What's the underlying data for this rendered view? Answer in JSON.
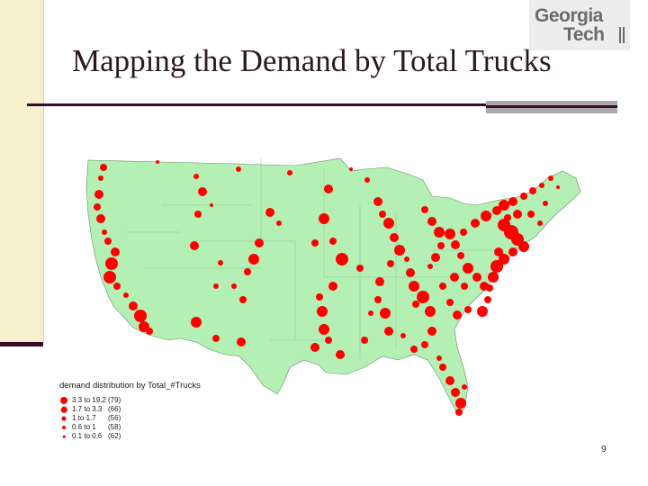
{
  "slide": {
    "title": "Mapping the Demand by Total Trucks",
    "page_number": "9",
    "logo": {
      "line1": "Georgia",
      "line2": "Tech"
    }
  },
  "map": {
    "region": "Continental United States",
    "land_color": "#b4f0b4",
    "border_color": "#6a8a6a",
    "dot_color": "#ff0000"
  },
  "legend": {
    "title": "demand distribution by Total_#Trucks",
    "classes": [
      {
        "range": "3.3 to 19.2",
        "count": "(79)",
        "dot": 8
      },
      {
        "range": "1.7 to   3.3",
        "count": "(66)",
        "dot": 6.5
      },
      {
        "range": "1    to   1.7",
        "count": "(56)",
        "dot": 5
      },
      {
        "range": "0.6 to   1",
        "count": "(58)",
        "dot": 4
      },
      {
        "range": "0.1 to   0.6",
        "count": "(62)",
        "dot": 2.5
      }
    ]
  }
}
